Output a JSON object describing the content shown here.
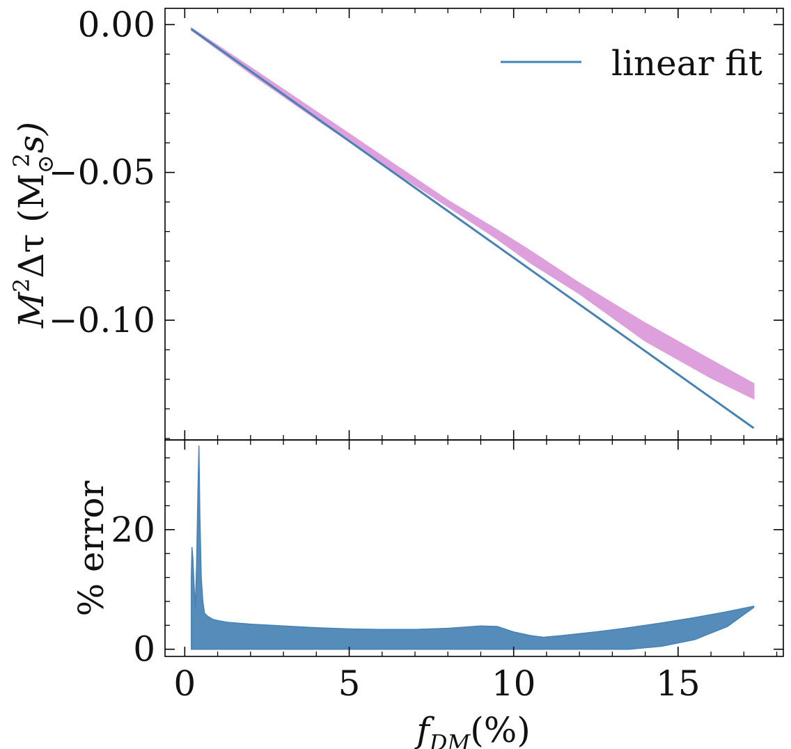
{
  "colors": {
    "fit_line": "#4682b4",
    "band": "#dda0dd",
    "error": "#4682b4",
    "axis": "#000000"
  },
  "chart_data": [
    {
      "type": "line",
      "panel": "top",
      "ylabel": "M²Δτ (M☉² s)",
      "xlabel": "",
      "xlim": [
        -0.6,
        18.2
      ],
      "ylim": [
        -0.1405,
        0.0055
      ],
      "x_ticks": [
        0,
        5,
        10,
        15
      ],
      "y_ticks": [
        0.0,
        -0.05,
        -0.1
      ],
      "y_tick_labels": [
        "0.00",
        "−0.05",
        "−0.10"
      ],
      "grid": false,
      "legend": {
        "placement": "top-right",
        "entries": [
          "linear fit"
        ]
      },
      "series": [
        {
          "name": "linear fit",
          "kind": "line",
          "x": [
            0.2,
            17.3
          ],
          "y": [
            -0.0015,
            -0.1365
          ]
        },
        {
          "kind": "band",
          "x": [
            0.2,
            2,
            4,
            6,
            8,
            9.5,
            10.5,
            12,
            14,
            16,
            17.3
          ],
          "upper": [
            -0.0012,
            -0.0145,
            -0.0295,
            -0.0445,
            -0.0595,
            -0.0695,
            -0.0765,
            -0.0875,
            -0.101,
            -0.1135,
            -0.1215
          ],
          "lower": [
            -0.0018,
            -0.0165,
            -0.032,
            -0.047,
            -0.0615,
            -0.0725,
            -0.0805,
            -0.091,
            -0.107,
            -0.1195,
            -0.1265
          ]
        }
      ]
    },
    {
      "type": "line",
      "panel": "bottom",
      "ylabel": "% error",
      "xlabel": "f_DM(%)",
      "xlim": [
        -0.6,
        18.2
      ],
      "ylim": [
        -1.2,
        35
      ],
      "x_ticks": [
        0,
        5,
        10,
        15
      ],
      "x_tick_labels": [
        "0",
        "5",
        "10",
        "15"
      ],
      "y_ticks": [
        0,
        20
      ],
      "y_tick_labels": [
        "0",
        "20"
      ],
      "grid": false,
      "series": [
        {
          "kind": "error-envelope",
          "x": [
            0.2,
            0.22,
            0.25,
            0.28,
            0.32,
            0.36,
            0.4,
            0.43,
            0.46,
            0.5,
            0.55,
            0.6,
            0.7,
            0.85,
            1.0,
            1.3,
            2,
            3,
            4,
            5,
            6,
            7,
            8,
            9,
            9.5,
            10.0,
            10.5,
            10.9,
            11.5,
            12.5,
            13.5,
            14.5,
            15.5,
            16.5,
            17.3
          ],
          "upper": [
            12,
            17,
            15,
            11,
            7,
            14,
            26,
            34,
            22,
            12,
            8,
            6,
            5.5,
            5,
            4.8,
            4.5,
            4.2,
            3.9,
            3.6,
            3.4,
            3.3,
            3.3,
            3.5,
            3.9,
            3.8,
            2.9,
            2.3,
            2.0,
            2.3,
            2.9,
            3.6,
            4.4,
            5.3,
            6.3,
            7.2
          ],
          "lower": [
            0,
            0,
            0,
            0,
            0,
            0,
            0,
            0,
            0,
            0,
            0,
            0,
            0,
            0,
            0,
            0,
            0,
            0,
            0,
            0,
            0,
            0,
            0,
            0,
            0,
            0,
            0,
            0,
            0,
            0,
            0,
            0.5,
            1.6,
            3.8,
            7.0
          ]
        }
      ]
    }
  ],
  "labels": {
    "top_ylabel_main": "M",
    "top_ylabel_sup": "2",
    "top_ylabel_rest": "Δτ (M",
    "top_ylabel_sub": "⊙",
    "top_ylabel_sup2": "2",
    "top_ylabel_tail": "s)",
    "bottom_ylabel": "% error",
    "xlabel_main": "f",
    "xlabel_sub": "DM",
    "xlabel_tail": "(%)",
    "legend_label": "linear fit"
  }
}
